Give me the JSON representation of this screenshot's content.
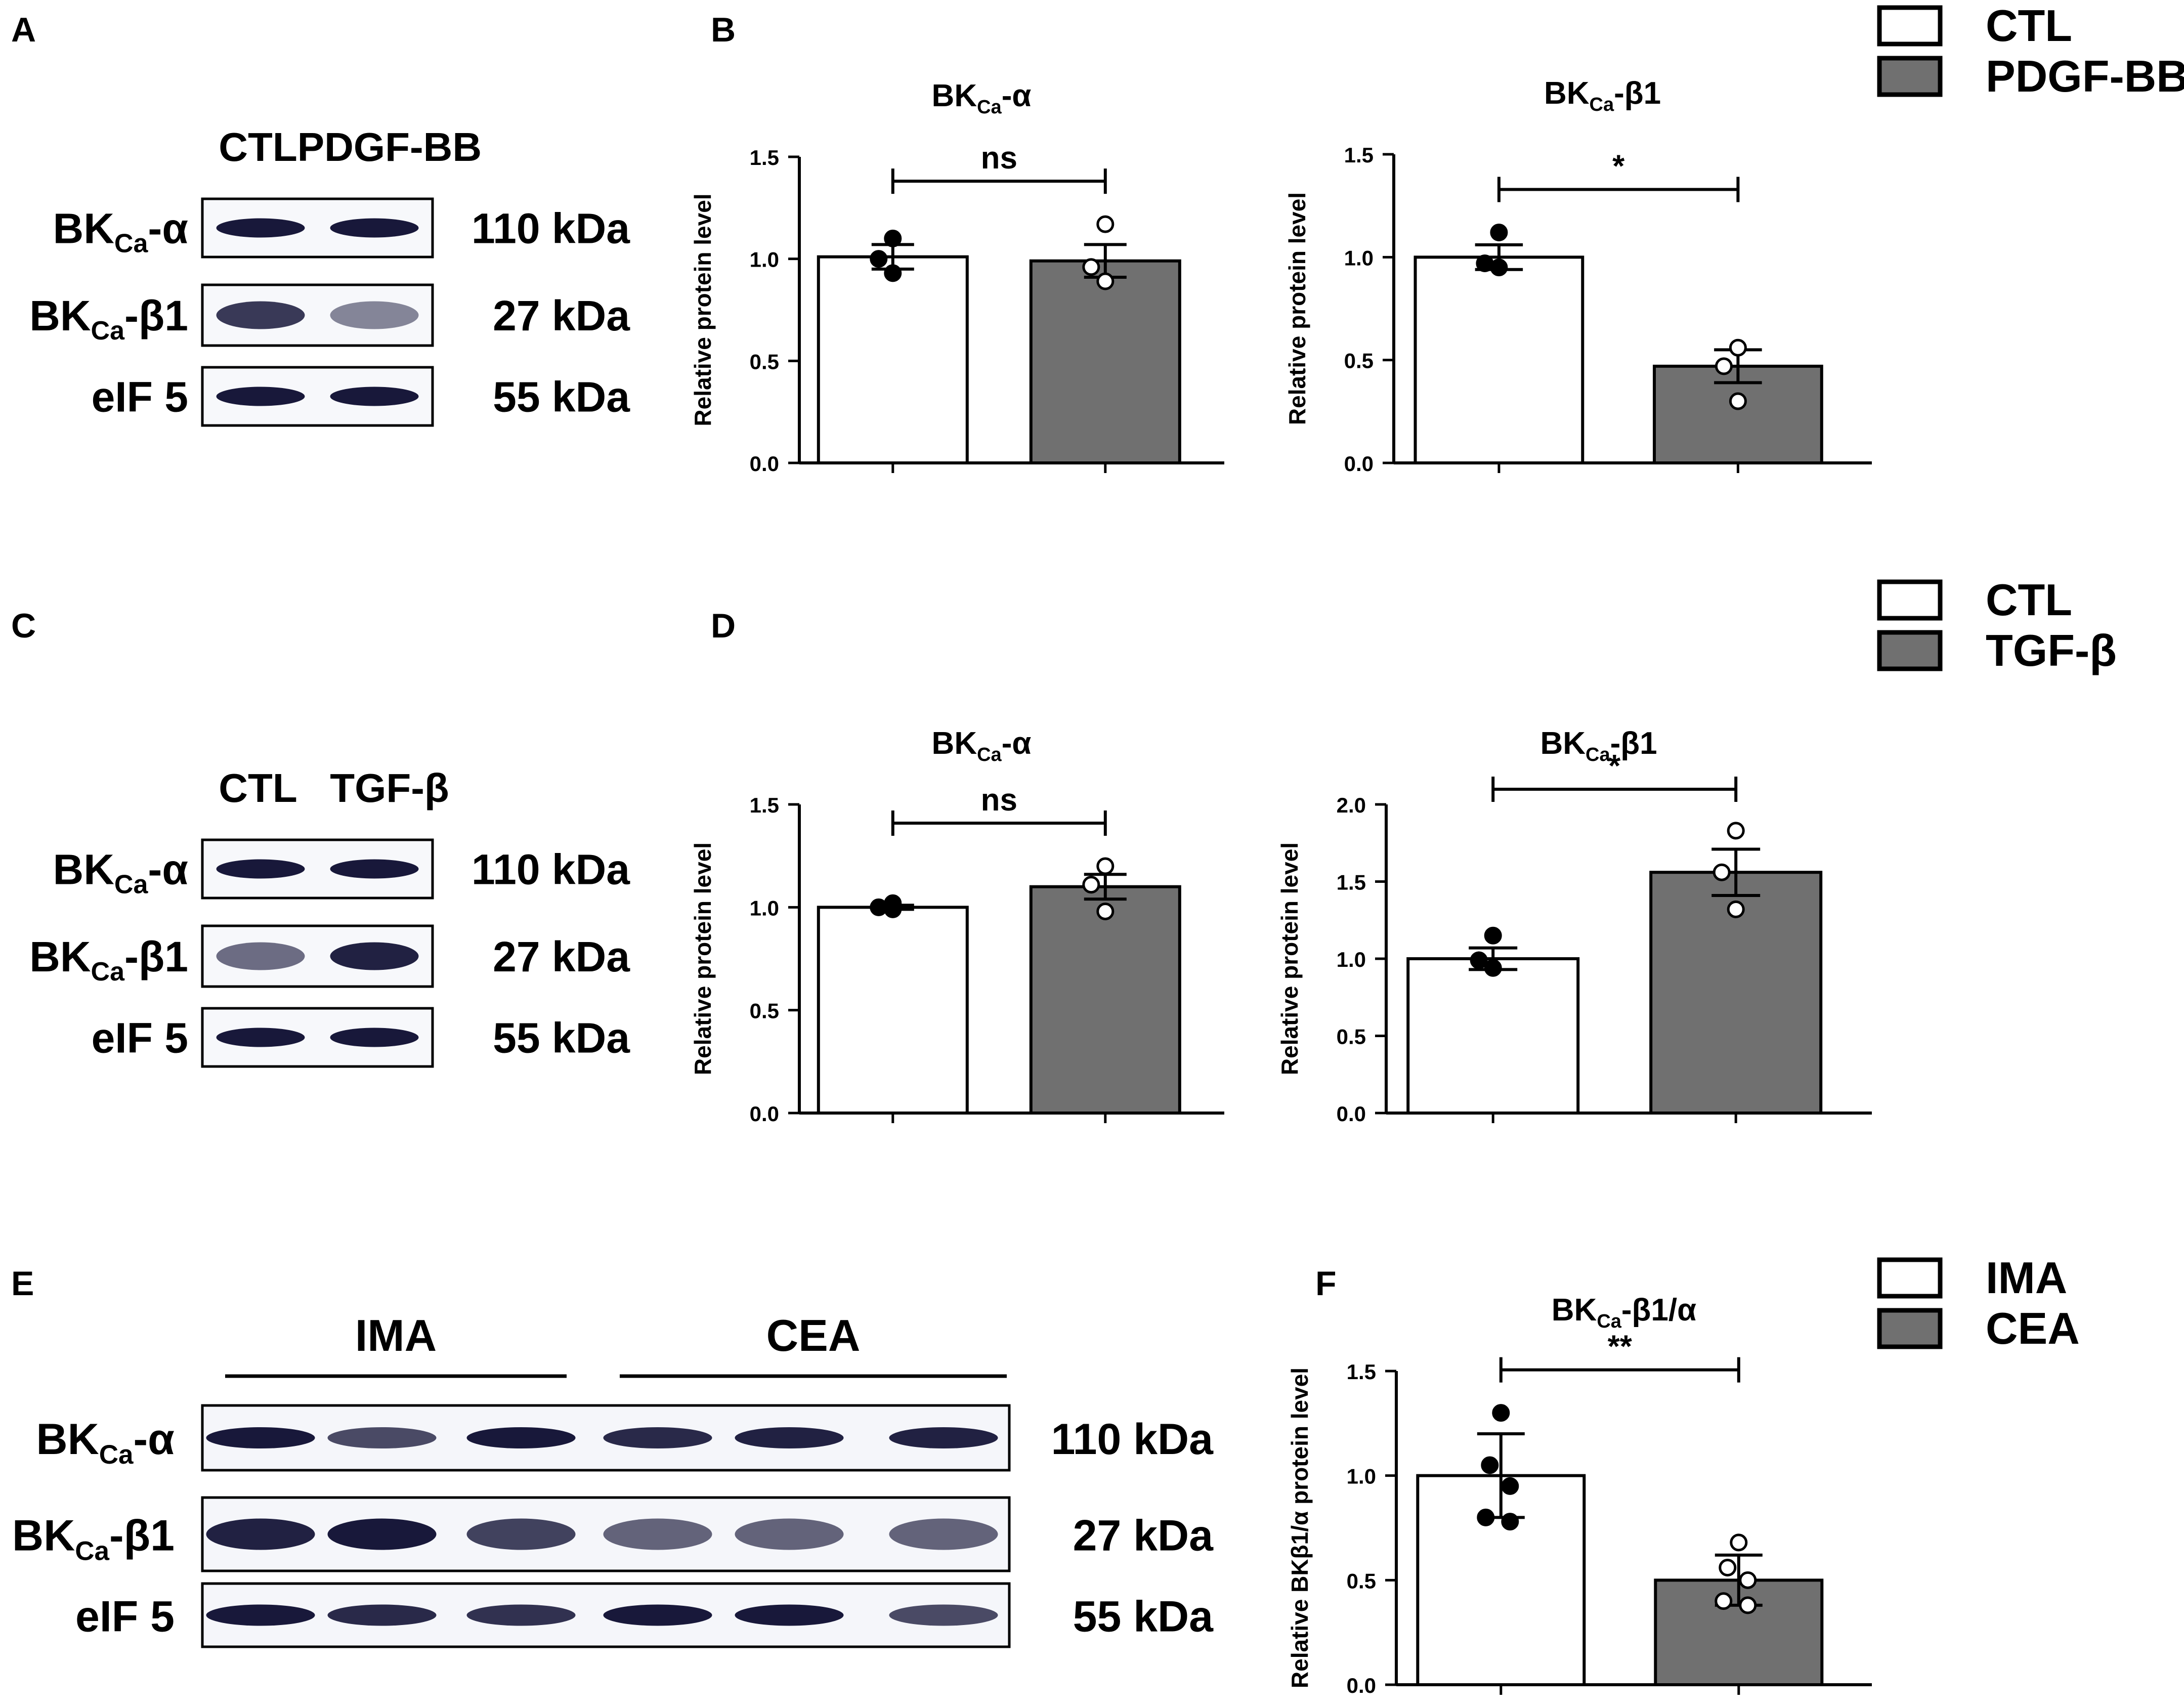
{
  "figure": {
    "panels": [
      {
        "letter": "A"
      },
      {
        "letter": "B"
      },
      {
        "letter": "C"
      },
      {
        "letter": "D"
      },
      {
        "letter": "E"
      },
      {
        "letter": "F"
      }
    ],
    "legends": [
      {
        "items": [
          {
            "label": "CTL",
            "color": "#ffffff"
          },
          {
            "label": "PDGF-BB",
            "color": "#707070"
          }
        ]
      },
      {
        "items": [
          {
            "label": "CTL",
            "color": "#ffffff"
          },
          {
            "label": "TGF-β",
            "color": "#707070"
          }
        ]
      },
      {
        "items": [
          {
            "label": "IMA",
            "color": "#ffffff"
          },
          {
            "label": "CEA",
            "color": "#707070"
          }
        ]
      }
    ]
  },
  "blots": [
    {
      "panel": "A",
      "lanes": [
        "CTL",
        "PDGF-BB"
      ],
      "rows": [
        {
          "label_main": "BK",
          "label_sub": "Ca",
          "label_suffix": "-α",
          "kda": "110 kDa",
          "intensities": [
            1.0,
            1.0
          ]
        },
        {
          "label_main": "BK",
          "label_sub": "Ca",
          "label_suffix": "-β1",
          "kda": "27 kDa",
          "intensities": [
            0.8,
            0.35
          ]
        },
        {
          "label_main": "eIF 5",
          "label_sub": "",
          "label_suffix": "",
          "kda": "55 kDa",
          "intensities": [
            1.0,
            1.0
          ]
        }
      ]
    },
    {
      "panel": "C",
      "lanes": [
        "CTL",
        "TGF-β"
      ],
      "rows": [
        {
          "label_main": "BK",
          "label_sub": "Ca",
          "label_suffix": "-α",
          "kda": "110 kDa",
          "intensities": [
            1.0,
            1.0
          ]
        },
        {
          "label_main": "BK",
          "label_sub": "Ca",
          "label_suffix": "-β1",
          "kda": "27 kDa",
          "intensities": [
            0.5,
            0.95
          ]
        },
        {
          "label_main": "eIF 5",
          "label_sub": "",
          "label_suffix": "",
          "kda": "55 kDa",
          "intensities": [
            1.0,
            1.0
          ]
        }
      ]
    },
    {
      "panel": "E",
      "groups": [
        "IMA",
        "CEA"
      ],
      "rows": [
        {
          "label_main": "BK",
          "label_sub": "Ca",
          "label_suffix": "-α",
          "kda": "110 kDa",
          "intensities": [
            1.0,
            0.7,
            1.0,
            0.9,
            0.95,
            0.95
          ]
        },
        {
          "label_main": "BK",
          "label_sub": "Ca",
          "label_suffix": "-β1",
          "kda": "27 kDa",
          "intensities": [
            0.95,
            1.0,
            0.75,
            0.55,
            0.55,
            0.55
          ]
        },
        {
          "label_main": "eIF 5",
          "label_sub": "",
          "label_suffix": "",
          "kda": "55 kDa",
          "intensities": [
            1.0,
            0.9,
            0.85,
            1.0,
            1.0,
            0.7
          ]
        }
      ]
    }
  ],
  "chart_data": [
    {
      "panel": "B",
      "type": "bar",
      "title": {
        "main": "BK",
        "sub": "Ca",
        "suffix": "-α"
      },
      "ylabel": "Relative protein level",
      "ylim": [
        0,
        1.5
      ],
      "yticks": [
        0.0,
        0.5,
        1.0,
        1.5
      ],
      "categories": [
        "CTL",
        "PDGF-BB"
      ],
      "values": [
        1.01,
        0.99
      ],
      "sem": [
        0.06,
        0.08
      ],
      "points": [
        [
          1.1,
          1.0,
          0.93
        ],
        [
          1.17,
          0.96,
          0.89
        ]
      ],
      "significance": "ns"
    },
    {
      "panel": "B",
      "type": "bar",
      "title": {
        "main": "BK",
        "sub": "Ca",
        "suffix": "-β1"
      },
      "ylabel": "Relative protein level",
      "ylim": [
        0,
        1.5
      ],
      "yticks": [
        0.0,
        0.5,
        1.0,
        1.5
      ],
      "categories": [
        "CTL",
        "PDGF-BB"
      ],
      "values": [
        1.0,
        0.47
      ],
      "sem": [
        0.06,
        0.08
      ],
      "points": [
        [
          1.12,
          0.97,
          0.95
        ],
        [
          0.56,
          0.47,
          0.3
        ]
      ],
      "significance": "*"
    },
    {
      "panel": "D",
      "type": "bar",
      "title": {
        "main": "BK",
        "sub": "Ca",
        "suffix": "-α"
      },
      "ylabel": "Relative protein level",
      "ylim": [
        0,
        1.5
      ],
      "yticks": [
        0.0,
        0.5,
        1.0,
        1.5
      ],
      "categories": [
        "CTL",
        "TGF-β"
      ],
      "values": [
        1.0,
        1.1
      ],
      "sem": [
        0.01,
        0.06
      ],
      "points": [
        [
          1.02,
          1.0,
          0.99
        ],
        [
          1.2,
          1.11,
          0.98
        ]
      ],
      "significance": "ns"
    },
    {
      "panel": "D",
      "type": "bar",
      "title": {
        "main": "BK",
        "sub": "Ca",
        "suffix": "-β1"
      },
      "ylabel": "Relative protein level",
      "ylim": [
        0,
        2.0
      ],
      "yticks": [
        0.0,
        0.5,
        1.0,
        1.5,
        2.0
      ],
      "categories": [
        "CTL",
        "TGF-β"
      ],
      "values": [
        1.0,
        1.56
      ],
      "sem": [
        0.07,
        0.15
      ],
      "points": [
        [
          1.15,
          0.99,
          0.94
        ],
        [
          1.83,
          1.56,
          1.32
        ]
      ],
      "significance": "*"
    },
    {
      "panel": "F",
      "type": "bar",
      "title": {
        "main": "BK",
        "sub": "Ca",
        "suffix": "-β1/α"
      },
      "ylabel": "Relative BKβ1/α protein level",
      "ylim": [
        0,
        1.5
      ],
      "yticks": [
        0.0,
        0.5,
        1.0,
        1.5
      ],
      "categories": [
        "IMA",
        "CEA"
      ],
      "values": [
        1.0,
        0.5
      ],
      "sem": [
        0.2,
        0.12
      ],
      "points": [
        [
          1.3,
          1.05,
          0.95,
          0.8,
          0.78
        ],
        [
          0.68,
          0.56,
          0.5,
          0.4,
          0.38
        ]
      ],
      "significance": "**"
    }
  ]
}
